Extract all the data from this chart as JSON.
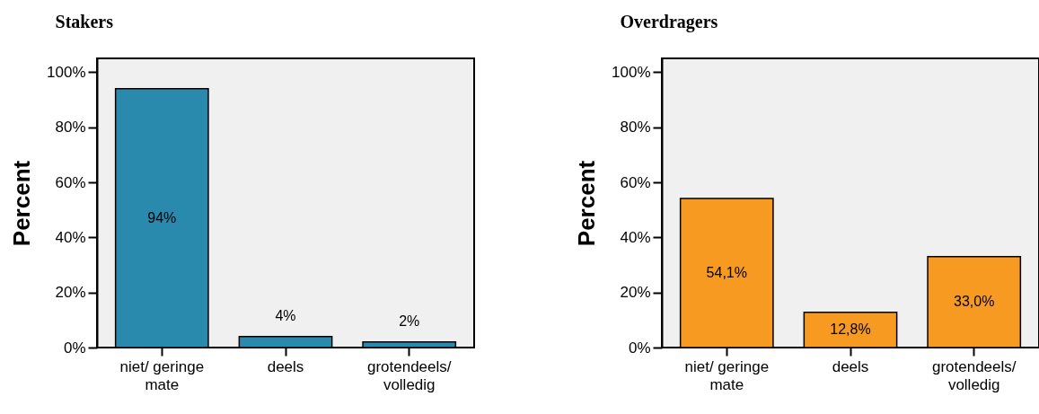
{
  "chart_data": [
    {
      "type": "bar",
      "title": "Stakers",
      "ylabel": "Percent",
      "categories": [
        "niet/ geringe\nmate",
        "deels",
        "grotendeels/\nvolledig"
      ],
      "values": [
        94,
        4,
        2
      ],
      "color": "#2a8aad",
      "value_labels": [
        "94%",
        "4%",
        "2%"
      ],
      "ylim": [
        0,
        105
      ],
      "yticks": [
        {
          "value": 0,
          "label": "0%"
        },
        {
          "value": 20,
          "label": "20%"
        },
        {
          "value": 40,
          "label": "40%"
        },
        {
          "value": 60,
          "label": "60%"
        },
        {
          "value": 80,
          "label": "80%"
        },
        {
          "value": 100,
          "label": "100%"
        }
      ]
    },
    {
      "type": "bar",
      "title": "Overdragers",
      "ylabel": "Percent",
      "categories": [
        "niet/ geringe\nmate",
        "deels",
        "grotendeels/\nvolledig"
      ],
      "values": [
        54.1,
        12.8,
        33.0
      ],
      "color": "#f79a22",
      "value_labels": [
        "54,1%",
        "12,8%",
        "33,0%"
      ],
      "ylim": [
        0,
        105
      ],
      "yticks": [
        {
          "value": 0,
          "label": "0%"
        },
        {
          "value": 20,
          "label": "20%"
        },
        {
          "value": 40,
          "label": "40%"
        },
        {
          "value": 60,
          "label": "60%"
        },
        {
          "value": 80,
          "label": "80%"
        },
        {
          "value": 100,
          "label": "100%"
        }
      ]
    }
  ]
}
